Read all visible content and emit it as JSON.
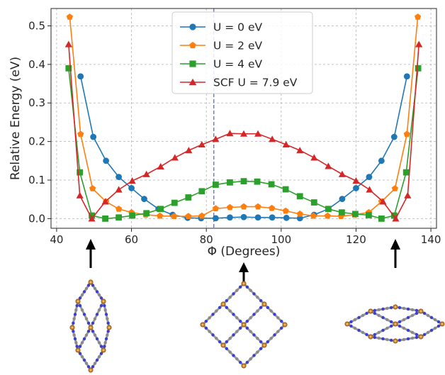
{
  "chart_data": {
    "type": "line",
    "title": "",
    "xlabel": "Φ (Degrees)",
    "ylabel": "Relative Energy (eV)",
    "xlim": [
      38.5,
      141.5
    ],
    "ylim": [
      -0.025,
      0.545
    ],
    "xticks": [
      40,
      60,
      80,
      100,
      120,
      140
    ],
    "yticks": [
      0.0,
      0.1,
      0.2,
      0.3,
      0.4,
      0.5
    ],
    "grid": true,
    "legend_position": "top-center",
    "vertical_line": {
      "x": 82,
      "color": "#4a5de0",
      "style": "dashed"
    },
    "series": [
      {
        "name": "U = 0 eV",
        "color": "#1f77b4",
        "marker": "circle",
        "points": [
          [
            46.4,
            0.369
          ],
          [
            49.8,
            0.212
          ],
          [
            53.2,
            0.15
          ],
          [
            56.6,
            0.108
          ],
          [
            60.0,
            0.079
          ],
          [
            63.4,
            0.051
          ],
          [
            67.2,
            0.025
          ],
          [
            71.0,
            0.01
          ],
          [
            75.0,
            0.002
          ],
          [
            78.6,
            0.001
          ],
          [
            82.5,
            0.001
          ],
          [
            86.3,
            0.003
          ],
          [
            90.0,
            0.004
          ],
          [
            93.8,
            0.003
          ],
          [
            97.6,
            0.003
          ],
          [
            101.4,
            0.002
          ],
          [
            105.0,
            0.001
          ],
          [
            108.8,
            0.01
          ],
          [
            112.6,
            0.025
          ],
          [
            116.3,
            0.051
          ],
          [
            120.0,
            0.079
          ],
          [
            123.5,
            0.108
          ],
          [
            126.8,
            0.15
          ],
          [
            130.2,
            0.212
          ],
          [
            133.6,
            0.369
          ]
        ]
      },
      {
        "name": "U = 2 eV",
        "color": "#ff7f0e",
        "marker": "pentagon",
        "points": [
          [
            43.5,
            0.523
          ],
          [
            46.4,
            0.219
          ],
          [
            49.6,
            0.078
          ],
          [
            53.2,
            0.044
          ],
          [
            56.6,
            0.025
          ],
          [
            60.0,
            0.016
          ],
          [
            63.8,
            0.01
          ],
          [
            67.6,
            0.007
          ],
          [
            71.4,
            0.006
          ],
          [
            75.2,
            0.006
          ],
          [
            78.8,
            0.007
          ],
          [
            82.5,
            0.026
          ],
          [
            86.3,
            0.029
          ],
          [
            90.0,
            0.031
          ],
          [
            93.8,
            0.031
          ],
          [
            97.5,
            0.027
          ],
          [
            101.2,
            0.02
          ],
          [
            105.0,
            0.012
          ],
          [
            108.6,
            0.007
          ],
          [
            112.4,
            0.007
          ],
          [
            116.0,
            0.006
          ],
          [
            119.6,
            0.01
          ],
          [
            123.4,
            0.016
          ],
          [
            126.8,
            0.044
          ],
          [
            130.4,
            0.078
          ],
          [
            133.6,
            0.219
          ],
          [
            136.5,
            0.523
          ]
        ]
      },
      {
        "name": "U = 4 eV",
        "color": "#2ca02c",
        "marker": "square",
        "points": [
          [
            43.2,
            0.39
          ],
          [
            46.2,
            0.12
          ],
          [
            49.4,
            0.008
          ],
          [
            53.0,
            0.0
          ],
          [
            56.6,
            0.003
          ],
          [
            60.2,
            0.008
          ],
          [
            64.0,
            0.014
          ],
          [
            67.8,
            0.025
          ],
          [
            71.5,
            0.041
          ],
          [
            75.2,
            0.055
          ],
          [
            78.8,
            0.071
          ],
          [
            82.5,
            0.088
          ],
          [
            86.3,
            0.094
          ],
          [
            90.0,
            0.097
          ],
          [
            93.6,
            0.096
          ],
          [
            97.4,
            0.089
          ],
          [
            101.2,
            0.076
          ],
          [
            105.0,
            0.058
          ],
          [
            108.8,
            0.042
          ],
          [
            112.6,
            0.025
          ],
          [
            116.2,
            0.016
          ],
          [
            119.8,
            0.012
          ],
          [
            123.4,
            0.009
          ],
          [
            126.8,
            0.0
          ],
          [
            130.2,
            0.008
          ],
          [
            133.4,
            0.12
          ],
          [
            136.6,
            0.39
          ]
        ]
      },
      {
        "name": "SCF U = 7.9 eV",
        "color": "#d62728",
        "marker": "triangle",
        "points": [
          [
            43.2,
            0.452
          ],
          [
            46.2,
            0.06
          ],
          [
            49.4,
            0.0
          ],
          [
            53.0,
            0.044
          ],
          [
            56.6,
            0.075
          ],
          [
            60.2,
            0.098
          ],
          [
            64.0,
            0.115
          ],
          [
            67.8,
            0.135
          ],
          [
            71.6,
            0.158
          ],
          [
            75.3,
            0.177
          ],
          [
            78.8,
            0.192
          ],
          [
            82.5,
            0.206
          ],
          [
            86.3,
            0.221
          ],
          [
            90.0,
            0.22
          ],
          [
            93.8,
            0.22
          ],
          [
            97.6,
            0.206
          ],
          [
            101.3,
            0.192
          ],
          [
            105.0,
            0.177
          ],
          [
            108.8,
            0.158
          ],
          [
            112.6,
            0.136
          ],
          [
            116.3,
            0.115
          ],
          [
            120.0,
            0.098
          ],
          [
            123.6,
            0.075
          ],
          [
            127.2,
            0.044
          ],
          [
            130.6,
            0.0
          ],
          [
            133.8,
            0.06
          ],
          [
            136.8,
            0.452
          ]
        ]
      }
    ]
  }
}
